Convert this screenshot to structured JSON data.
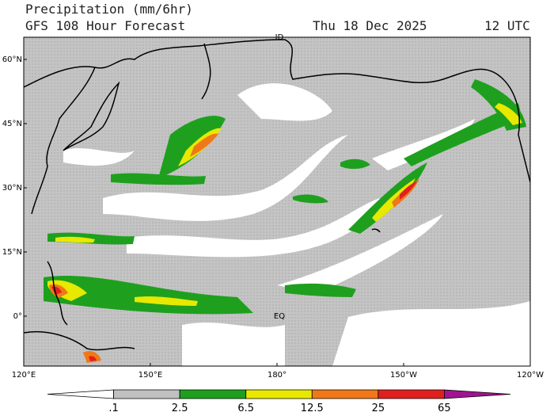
{
  "header": {
    "title": "Precipitation (mm/6hr)",
    "subtitle": "GFS 108 Hour Forecast",
    "date": "Thu 18 Dec 2025",
    "time": "12 UTC"
  },
  "map": {
    "lat_labels": [
      "60°N",
      "45°N",
      "30°N",
      "15°N",
      "0°"
    ],
    "lon_labels": [
      "120°E",
      "150°E",
      "180°",
      "150°W",
      "120°W"
    ],
    "annotations": [
      "ID",
      "EQ"
    ]
  },
  "colorbar": {
    "labels": [
      ".1",
      "2.5",
      "6.5",
      "12.5",
      "25",
      "65"
    ],
    "colors": [
      "#ffffff",
      "#c0c0c0",
      "#1ea01e",
      "#e8e800",
      "#f07818",
      "#e02020",
      "#a01490"
    ]
  }
}
